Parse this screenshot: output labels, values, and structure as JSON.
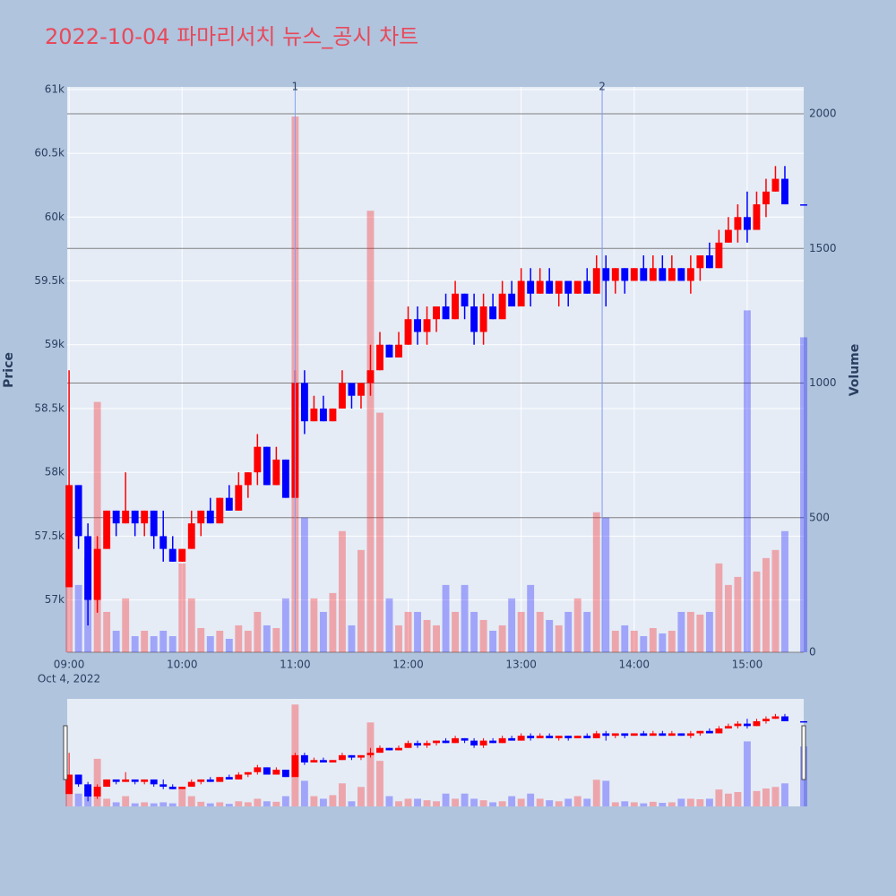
{
  "chart_data": {
    "type": "candlestick",
    "title": "2022-10-04 파마리서치 뉴스_공시 차트",
    "y_title": "Price",
    "y2_title": "Volume",
    "x_date_label": "Oct 4, 2022",
    "increasing_color": "#ff0000",
    "decreasing_color": "#0000ff",
    "grid": true,
    "rangeslider": true,
    "x": [
      "2022-10-04 09:00",
      "2022-10-04 09:05",
      "2022-10-04 09:10",
      "2022-10-04 09:15",
      "2022-10-04 09:20",
      "2022-10-04 09:25",
      "2022-10-04 09:30",
      "2022-10-04 09:35",
      "2022-10-04 09:40",
      "2022-10-04 09:45",
      "2022-10-04 09:50",
      "2022-10-04 09:55",
      "2022-10-04 10:00",
      "2022-10-04 10:05",
      "2022-10-04 10:10",
      "2022-10-04 10:15",
      "2022-10-04 10:20",
      "2022-10-04 10:25",
      "2022-10-04 10:30",
      "2022-10-04 10:35",
      "2022-10-04 10:40",
      "2022-10-04 10:45",
      "2022-10-04 10:50",
      "2022-10-04 10:55",
      "2022-10-04 11:00",
      "2022-10-04 11:05",
      "2022-10-04 11:10",
      "2022-10-04 11:15",
      "2022-10-04 11:20",
      "2022-10-04 11:25",
      "2022-10-04 11:30",
      "2022-10-04 11:35",
      "2022-10-04 11:40",
      "2022-10-04 11:45",
      "2022-10-04 11:50",
      "2022-10-04 11:55",
      "2022-10-04 12:00",
      "2022-10-04 12:05",
      "2022-10-04 12:10",
      "2022-10-04 12:15",
      "2022-10-04 12:20",
      "2022-10-04 12:25",
      "2022-10-04 12:30",
      "2022-10-04 12:35",
      "2022-10-04 12:40",
      "2022-10-04 12:45",
      "2022-10-04 12:50",
      "2022-10-04 12:55",
      "2022-10-04 13:00",
      "2022-10-04 13:05",
      "2022-10-04 13:10",
      "2022-10-04 13:15",
      "2022-10-04 13:20",
      "2022-10-04 13:25",
      "2022-10-04 13:30",
      "2022-10-04 13:35",
      "2022-10-04 13:40",
      "2022-10-04 13:45",
      "2022-10-04 13:50",
      "2022-10-04 13:55",
      "2022-10-04 14:00",
      "2022-10-04 14:05",
      "2022-10-04 14:10",
      "2022-10-04 14:15",
      "2022-10-04 14:20",
      "2022-10-04 14:25",
      "2022-10-04 14:30",
      "2022-10-04 14:35",
      "2022-10-04 14:40",
      "2022-10-04 14:45",
      "2022-10-04 14:50",
      "2022-10-04 14:55",
      "2022-10-04 15:00",
      "2022-10-04 15:05",
      "2022-10-04 15:10",
      "2022-10-04 15:15",
      "2022-10-04 15:20",
      "2022-10-04 15:30"
    ],
    "open": [
      57100,
      57900,
      57500,
      57000,
      57400,
      57700,
      57600,
      57700,
      57600,
      57700,
      57500,
      57400,
      57300,
      57400,
      57600,
      57700,
      57600,
      57800,
      57700,
      57900,
      58000,
      58200,
      57900,
      58100,
      57800,
      58700,
      58400,
      58500,
      58400,
      58500,
      58700,
      58600,
      58700,
      58800,
      59000,
      58900,
      59000,
      59200,
      59100,
      59200,
      59300,
      59200,
      59400,
      59300,
      59100,
      59300,
      59200,
      59400,
      59300,
      59500,
      59400,
      59500,
      59400,
      59500,
      59400,
      59500,
      59400,
      59600,
      59500,
      59600,
      59500,
      59600,
      59500,
      59600,
      59500,
      59600,
      59500,
      59600,
      59700,
      59600,
      59800,
      59900,
      60000,
      59900,
      60100,
      60200,
      60300,
      60100
    ],
    "high": [
      58800,
      57900,
      57600,
      57500,
      57700,
      57700,
      58000,
      57700,
      57700,
      57700,
      57700,
      57500,
      57400,
      57700,
      57700,
      57800,
      57800,
      57900,
      58000,
      58000,
      58300,
      58200,
      58200,
      58100,
      58800,
      58800,
      58600,
      58600,
      58500,
      58800,
      58700,
      58700,
      59000,
      59100,
      59000,
      59100,
      59300,
      59300,
      59300,
      59300,
      59400,
      59500,
      59400,
      59400,
      59400,
      59400,
      59500,
      59500,
      59600,
      59600,
      59600,
      59600,
      59500,
      59500,
      59500,
      59600,
      59700,
      59700,
      59600,
      59600,
      59600,
      59700,
      59700,
      59700,
      59700,
      59600,
      59700,
      59700,
      59800,
      59900,
      60000,
      60100,
      60200,
      60200,
      60300,
      60400,
      60400,
      60100
    ],
    "low": [
      57100,
      57400,
      56800,
      56900,
      57400,
      57500,
      57600,
      57500,
      57500,
      57400,
      57300,
      57300,
      57300,
      57400,
      57500,
      57600,
      57600,
      57700,
      57700,
      57800,
      57900,
      57900,
      57900,
      57800,
      57800,
      58300,
      58400,
      58400,
      58400,
      58500,
      58500,
      58500,
      58600,
      58800,
      58900,
      58900,
      59000,
      59000,
      59000,
      59100,
      59200,
      59200,
      59200,
      59000,
      59000,
      59200,
      59200,
      59300,
      59300,
      59300,
      59400,
      59400,
      59300,
      59300,
      59400,
      59400,
      59400,
      59300,
      59400,
      59400,
      59500,
      59500,
      59500,
      59500,
      59500,
      59500,
      59400,
      59500,
      59600,
      59600,
      59800,
      59800,
      59800,
      59900,
      60000,
      60200,
      60100,
      60100
    ],
    "close": [
      57900,
      57500,
      57000,
      57400,
      57700,
      57600,
      57700,
      57600,
      57700,
      57500,
      57400,
      57300,
      57400,
      57600,
      57700,
      57600,
      57800,
      57700,
      57900,
      58000,
      58200,
      57900,
      58100,
      57800,
      58700,
      58400,
      58500,
      58400,
      58500,
      58700,
      58600,
      58700,
      58800,
      59000,
      58900,
      59000,
      59200,
      59100,
      59200,
      59300,
      59200,
      59400,
      59300,
      59100,
      59300,
      59200,
      59400,
      59300,
      59500,
      59400,
      59500,
      59400,
      59500,
      59400,
      59500,
      59400,
      59600,
      59500,
      59600,
      59500,
      59600,
      59500,
      59600,
      59500,
      59600,
      59500,
      59600,
      59700,
      59600,
      59800,
      59900,
      60000,
      59900,
      60100,
      60200,
      60300,
      60100,
      60100
    ],
    "volume": [
      300,
      250,
      350,
      930,
      150,
      80,
      200,
      60,
      80,
      60,
      80,
      60,
      330,
      200,
      90,
      60,
      80,
      50,
      100,
      80,
      150,
      100,
      90,
      200,
      1990,
      500,
      200,
      150,
      220,
      450,
      100,
      380,
      1640,
      890,
      200,
      100,
      150,
      150,
      120,
      100,
      250,
      150,
      250,
      150,
      120,
      80,
      100,
      200,
      150,
      250,
      150,
      120,
      100,
      150,
      200,
      150,
      520,
      500,
      80,
      100,
      80,
      60,
      90,
      70,
      80,
      150,
      150,
      140,
      150,
      330,
      250,
      280,
      1270,
      300,
      350,
      380,
      450,
      1170
    ],
    "xlim": [
      "2022-10-04 08:59",
      "2022-10-04 15:30"
    ],
    "xticks": [
      {
        "value": "2022-10-04 09:00",
        "label": "09:00"
      },
      {
        "value": "2022-10-04 10:00",
        "label": "10:00"
      },
      {
        "value": "2022-10-04 11:00",
        "label": "11:00"
      },
      {
        "value": "2022-10-04 12:00",
        "label": "12:00"
      },
      {
        "value": "2022-10-04 13:00",
        "label": "13:00"
      },
      {
        "value": "2022-10-04 14:00",
        "label": "14:00"
      },
      {
        "value": "2022-10-04 15:00",
        "label": "15:00"
      }
    ],
    "ylim": [
      56590,
      61020
    ],
    "yticks": [
      {
        "value": 57000,
        "label": "57k"
      },
      {
        "value": 57500,
        "label": "57.5k"
      },
      {
        "value": 58000,
        "label": "58k"
      },
      {
        "value": 58500,
        "label": "58.5k"
      },
      {
        "value": 59000,
        "label": "59k"
      },
      {
        "value": 59500,
        "label": "59.5k"
      },
      {
        "value": 60000,
        "label": "60k"
      },
      {
        "value": 60500,
        "label": "60.5k"
      },
      {
        "value": 61000,
        "label": "61k"
      }
    ],
    "y2lim": [
      0,
      2100
    ],
    "y2ticks": [
      0,
      500,
      1000,
      1500,
      2000
    ],
    "annotations": [
      {
        "x": "2022-10-04 11:00",
        "text": "1"
      },
      {
        "x": "2022-10-04 13:43",
        "text": "2"
      }
    ]
  }
}
